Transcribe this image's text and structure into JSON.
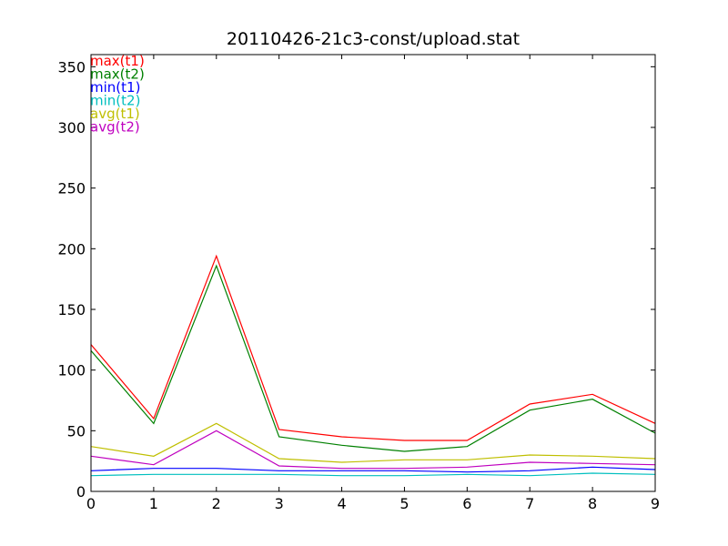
{
  "chart_data": {
    "type": "line",
    "title": "20110426-21c3-const/upload.stat",
    "xlabel": "",
    "ylabel": "",
    "x": [
      0,
      1,
      2,
      3,
      4,
      5,
      6,
      7,
      8,
      9
    ],
    "xlim": [
      0,
      9
    ],
    "ylim": [
      0,
      360
    ],
    "xticks": [
      "0",
      "1",
      "2",
      "3",
      "4",
      "5",
      "6",
      "7",
      "8",
      "9"
    ],
    "yticks": [
      "0",
      "50",
      "100",
      "150",
      "200",
      "250",
      "300",
      "350"
    ],
    "grid": false,
    "legend_position": "top-left",
    "series": [
      {
        "name": "max(t1)",
        "color": "#ff0000",
        "values": [
          121,
          60,
          194,
          51,
          45,
          42,
          42,
          72,
          80,
          56
        ]
      },
      {
        "name": "max(t2)",
        "color": "#008000",
        "values": [
          116,
          56,
          186,
          45,
          38,
          33,
          37,
          67,
          76,
          48
        ]
      },
      {
        "name": "min(t1)",
        "color": "#0000ff",
        "values": [
          17,
          19,
          19,
          17,
          17,
          17,
          16,
          17,
          20,
          18
        ]
      },
      {
        "name": "min(t2)",
        "color": "#00bfbf",
        "values": [
          13,
          14,
          14,
          14,
          13,
          13,
          14,
          13,
          15,
          14
        ]
      },
      {
        "name": "avg(t1)",
        "color": "#bfbf00",
        "values": [
          37,
          29,
          56,
          27,
          24,
          26,
          26,
          30,
          29,
          27
        ]
      },
      {
        "name": "avg(t2)",
        "color": "#bf00bf",
        "values": [
          29,
          22,
          50,
          21,
          19,
          19,
          20,
          24,
          23,
          22
        ]
      }
    ]
  }
}
